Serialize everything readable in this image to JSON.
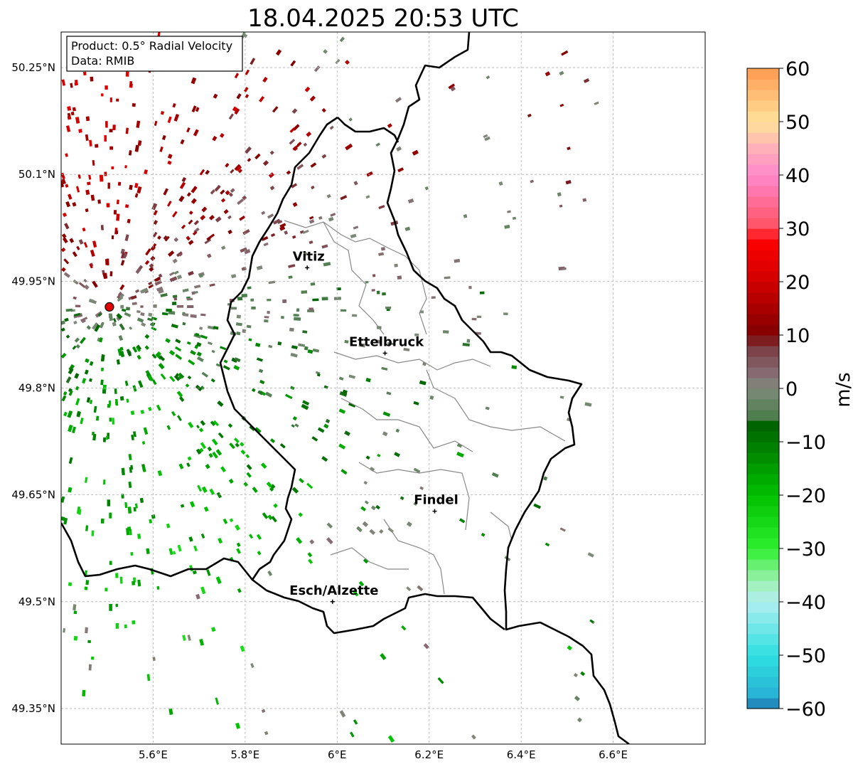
{
  "title": "18.04.2025 20:53 UTC",
  "info_box": {
    "product": "Product: 0.5° Radial Velocity",
    "source": "Data: RMIB"
  },
  "colorbar": {
    "unit": "m/s",
    "range": [
      -60,
      60
    ],
    "ticks": [
      "−60",
      "−50",
      "−40",
      "−30",
      "−20",
      "−10",
      "0",
      "10",
      "20",
      "30",
      "40",
      "50",
      "60"
    ],
    "stops": [
      {
        "v": -60,
        "color": "#1f77b4"
      },
      {
        "v": -57,
        "color": "#29b6d6"
      },
      {
        "v": -50,
        "color": "#2ee0e0"
      },
      {
        "v": -40,
        "color": "#b0eef0"
      },
      {
        "v": -36,
        "color": "#9ef0b0"
      },
      {
        "v": -30,
        "color": "#2ef02e"
      },
      {
        "v": -20,
        "color": "#00c000"
      },
      {
        "v": -7,
        "color": "#006400"
      },
      {
        "v": -5,
        "color": "#4f7f4f"
      },
      {
        "v": 0,
        "color": "#7f8a7a"
      },
      {
        "v": 3,
        "color": "#866a72"
      },
      {
        "v": 8,
        "color": "#7a3a40"
      },
      {
        "v": 10,
        "color": "#800000"
      },
      {
        "v": 20,
        "color": "#d00000"
      },
      {
        "v": 28,
        "color": "#ff0000"
      },
      {
        "v": 30,
        "color": "#ff5060"
      },
      {
        "v": 40,
        "color": "#ff88cc"
      },
      {
        "v": 45,
        "color": "#ffb0b8"
      },
      {
        "v": 50,
        "color": "#ffe29a"
      },
      {
        "v": 60,
        "color": "#ff9a50"
      }
    ]
  },
  "map": {
    "lon_range": [
      5.4,
      6.8
    ],
    "lat_range": [
      49.3,
      50.3
    ],
    "lon_ticks": [
      "5.6°E",
      "5.8°E",
      "6°E",
      "6.2°E",
      "6.4°E",
      "6.6°E"
    ],
    "lat_ticks": [
      "50.25°N",
      "50.1°N",
      "49.95°N",
      "49.8°N",
      "49.65°N",
      "49.5°N",
      "49.35°N"
    ],
    "radar_site": {
      "lon": 5.505,
      "lat": 49.914,
      "color": "#e00000"
    },
    "cities": [
      {
        "name": "Vitiz",
        "lon": 5.935,
        "lat": 49.969
      },
      {
        "name": "Ettelbruck",
        "lon": 6.104,
        "lat": 49.849
      },
      {
        "name": "Findel",
        "lon": 6.212,
        "lat": 49.627
      },
      {
        "name": "Esch/Alzette",
        "lon": 5.99,
        "lat": 49.5
      }
    ]
  }
}
